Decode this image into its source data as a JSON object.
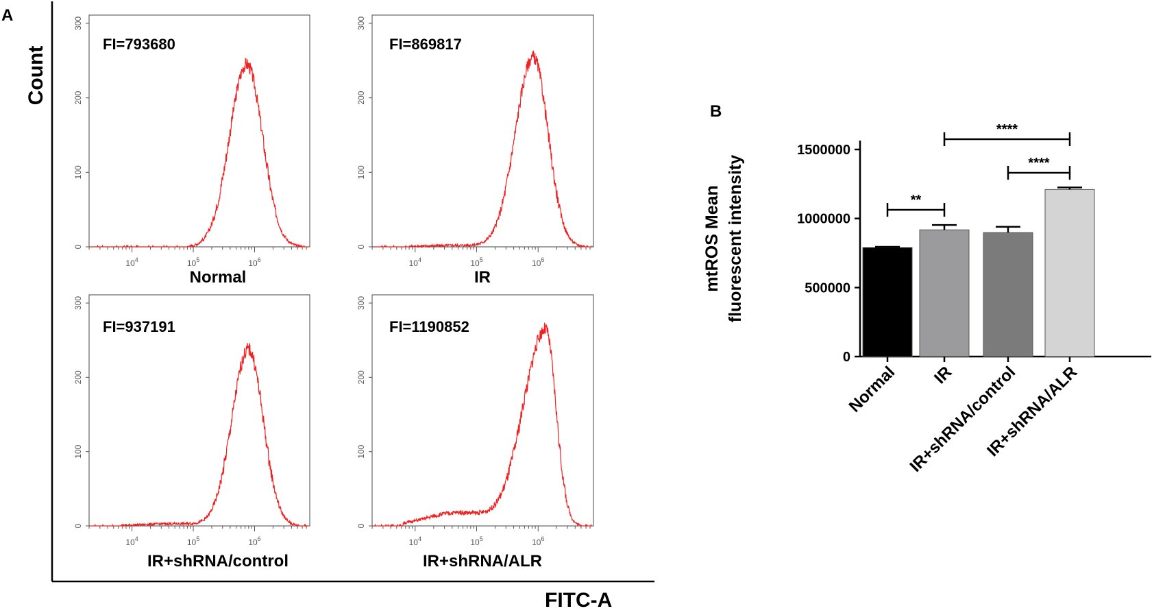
{
  "panel_a": {
    "letter": "A",
    "y_label": "Count",
    "x_label": "FITC-A"
  },
  "panel_b": {
    "letter": "B"
  },
  "chart_data": [
    {
      "type": "histogram",
      "title": "Normal",
      "annotation": "FI=793680",
      "xscale": "log",
      "xticks": [
        "10^4",
        "10^5",
        "10^6"
      ],
      "ylim": [
        0,
        300
      ],
      "yticks": [
        0,
        100,
        200,
        300
      ],
      "curve": {
        "peak_log10": 5.87,
        "peak_count": 245,
        "left_width": 0.28,
        "right_width": 0.26,
        "tail_count": 0
      }
    },
    {
      "type": "histogram",
      "title": "IR",
      "annotation": "FI=869817",
      "xscale": "log",
      "xticks": [
        "10^4",
        "10^5",
        "10^6"
      ],
      "ylim": [
        0,
        300
      ],
      "yticks": [
        0,
        100,
        200,
        300
      ],
      "curve": {
        "peak_log10": 5.92,
        "peak_count": 255,
        "left_width": 0.29,
        "right_width": 0.24,
        "tail_count": 2
      }
    },
    {
      "type": "histogram",
      "title": "IR+shRNA/control",
      "annotation": "FI=937191",
      "xscale": "log",
      "xticks": [
        "10^4",
        "10^5",
        "10^6"
      ],
      "ylim": [
        0,
        300
      ],
      "yticks": [
        0,
        100,
        200,
        300
      ],
      "curve": {
        "peak_log10": 5.9,
        "peak_count": 238,
        "left_width": 0.27,
        "right_width": 0.24,
        "tail_count": 3
      }
    },
    {
      "type": "histogram",
      "title": "IR+shRNA/ALR",
      "annotation": "FI=1190852",
      "xscale": "log",
      "xticks": [
        "10^4",
        "10^5",
        "10^6"
      ],
      "ylim": [
        0,
        300
      ],
      "yticks": [
        0,
        100,
        200,
        300
      ],
      "curve": {
        "peak_log10": 6.12,
        "peak_count": 265,
        "left_width": 0.36,
        "right_width": 0.17,
        "tail_count": 18
      }
    },
    {
      "type": "bar",
      "ylabel_lines": [
        "mtROS Mean",
        "fluorescent intensity"
      ],
      "categories": [
        "Normal",
        "IR",
        "IR+shRNA/control",
        "IR+shRNA/ALR"
      ],
      "values": [
        790000,
        918000,
        898000,
        1210000
      ],
      "errors": [
        5000,
        35000,
        42000,
        15000
      ],
      "ylim": [
        0,
        1500000
      ],
      "yticks": [
        0,
        500000,
        1000000,
        1500000
      ],
      "ytick_labels": [
        "0",
        "500000",
        "1000000",
        "1500000"
      ],
      "colors": [
        "#000000",
        "#9b9b9d",
        "#7b7b7b",
        "#d4d4d4"
      ],
      "significance": [
        {
          "from": 0,
          "to": 1,
          "label": "**"
        },
        {
          "from": 2,
          "to": 3,
          "label": "****"
        },
        {
          "from": 1,
          "to": 3,
          "label": "****"
        }
      ]
    }
  ]
}
